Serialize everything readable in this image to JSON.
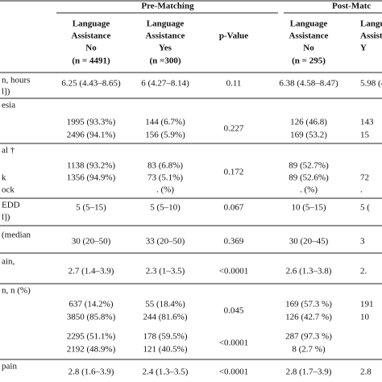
{
  "header": {
    "groups": [
      "Pre-Matching",
      "Post-Matc"
    ],
    "columns": [
      [
        "Language",
        "Assistance",
        "No",
        "(n = 4491)"
      ],
      [
        "Language",
        "Assistance",
        "Yes",
        "(n =300)"
      ],
      [
        "p-Value"
      ],
      [
        "Language",
        "Assistance",
        "No",
        "(n = 295)"
      ],
      [
        "Langu",
        "Assista",
        "Y"
      ]
    ]
  },
  "rows": [
    {
      "label": [
        "n, hours",
        "l])"
      ],
      "cells": [
        [
          "6.25 (4.43–8.65)"
        ],
        [
          "6 (4.27–8.14)"
        ],
        [
          "0.11"
        ],
        [
          "6.38 (4.58–8.47)"
        ],
        [
          "5.98 (4"
        ]
      ]
    },
    {
      "label": [
        "esia"
      ],
      "cells": [
        [
          "1995 (93.3%)",
          "2496 (94.1%)"
        ],
        [
          "144 (6.7%)",
          "156 (5.9%)"
        ],
        [
          "0.227"
        ],
        [
          "126 (46.8)",
          "169 (53.2)"
        ],
        [
          "143",
          "15"
        ]
      ]
    },
    {
      "label": [
        "al †",
        "k",
        "ock"
      ],
      "cells": [
        [
          "1138 (93.2%)",
          "1356 (94.9%)"
        ],
        [
          "83 (6.8%)",
          "73 (5.1%)",
          ". (%)"
        ],
        [
          "0.172"
        ],
        [
          "89 (52.7%)",
          "89 (52.6%)",
          ". (%)"
        ],
        [
          "",
          "72",
          "."
        ]
      ]
    },
    {
      "label": [
        "EDD",
        "l])"
      ],
      "cells": [
        [
          "5 (5–15)"
        ],
        [
          "5 (5–10)"
        ],
        [
          "0.067"
        ],
        [
          "10 (5–15)"
        ],
        [
          "5 ("
        ]
      ]
    },
    {
      "label": [
        "(median"
      ],
      "cells": [
        [
          "30 (20–50)"
        ],
        [
          "33 (20–50)"
        ],
        [
          "0.369"
        ],
        [
          "30 (20–45)"
        ],
        [
          "3"
        ]
      ]
    },
    {
      "label": [
        "ain,"
      ],
      "cells": [
        [
          "2.7 (1.4–3.9)"
        ],
        [
          "2.3 (1–3.5)"
        ],
        [
          "<0.0001"
        ],
        [
          "2.6 (1.3–3.8)"
        ],
        [
          "2."
        ]
      ]
    },
    {
      "label": [
        "n, n (%)"
      ],
      "cells": [
        [
          "637 (14.2%)",
          "3850 (85.8%)",
          "2295 (51.1%)",
          "2192 (48.9%)"
        ],
        [
          "55 (18.4%)",
          "244 (81.6%)",
          "178 (59.5%)",
          "121 (40.5%)"
        ],
        [
          "0.045",
          "<0.0001"
        ],
        [
          "169 (57.3 %)",
          "126 (42.7 %)",
          "287 (97.3 %)",
          "8 (2.7 %)"
        ],
        [
          "191",
          "10"
        ]
      ]
    },
    {
      "label": [
        "pain"
      ],
      "cells": [
        [
          "2.8 (1.6–3.9)"
        ],
        [
          "2.4 (1.3–3.5)"
        ],
        [
          "<0.0001"
        ],
        [
          "2.8 (1.7–3.9)"
        ],
        [
          "2.8"
        ]
      ]
    }
  ]
}
